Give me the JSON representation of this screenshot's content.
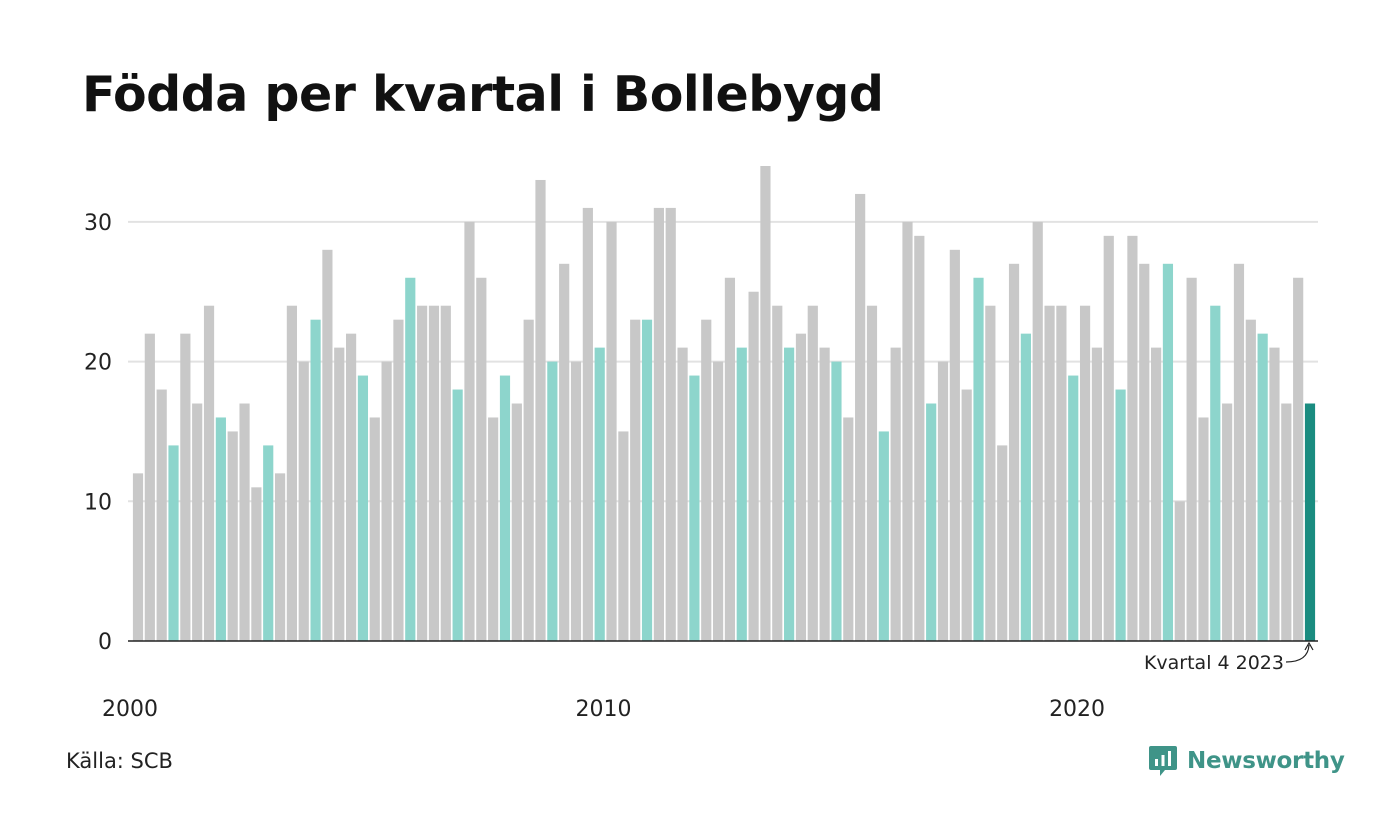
{
  "title": "Födda per kvartal i Bollebygd",
  "source": "Källa: SCB",
  "brand": {
    "name": "Newsworthy",
    "icon": "newsworthy-logo-icon"
  },
  "colors": {
    "other_quarters": "#c8c8c8",
    "same_quarter": "#8dd5cc",
    "latest": "#1a8c80",
    "grid": "#e2e2e2",
    "axis": "#222222"
  },
  "chart_data": {
    "type": "bar",
    "x_start": "2000 Q1",
    "values": [
      12,
      22,
      18,
      14,
      22,
      17,
      24,
      16,
      15,
      17,
      11,
      14,
      12,
      24,
      20,
      23,
      28,
      21,
      22,
      19,
      16,
      20,
      23,
      26,
      24,
      24,
      24,
      18,
      30,
      26,
      16,
      19,
      17,
      23,
      33,
      20,
      27,
      20,
      31,
      21,
      30,
      15,
      23,
      23,
      31,
      31,
      21,
      19,
      23,
      20,
      26,
      21,
      25,
      34,
      24,
      21,
      22,
      24,
      21,
      20,
      16,
      32,
      24,
      15,
      21,
      30,
      29,
      17,
      20,
      28,
      18,
      26,
      24,
      14,
      27,
      22,
      30,
      24,
      24,
      19,
      24,
      21,
      29,
      18,
      29,
      27,
      21,
      27,
      10,
      26,
      16,
      24,
      17,
      27,
      23,
      22,
      21,
      17,
      26,
      17
    ],
    "highlight_quarter": 4,
    "ylim": [
      0,
      34
    ],
    "yticks": [
      0,
      10,
      20,
      30
    ],
    "xticks": [
      "2000",
      "2010",
      "2020"
    ],
    "annotation": "Kvartal 4 2023",
    "grid": true,
    "legend": "none"
  }
}
